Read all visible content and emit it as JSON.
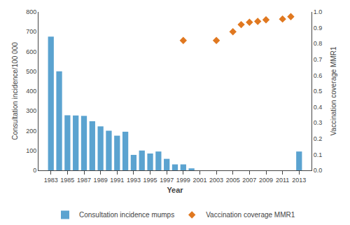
{
  "chart_data": {
    "type": "bar",
    "xlabel": "Year",
    "ylabel": "Consultation incidence/100 000",
    "y2label": "Vaccination coverage MMR1",
    "series": [
      {
        "name": "Consultation incidence mumps",
        "type": "bar",
        "color": "#5BA3D0",
        "x": [
          1983,
          1984,
          1985,
          1986,
          1987,
          1988,
          1989,
          1990,
          1991,
          1992,
          1993,
          1994,
          1995,
          1996,
          1997,
          1998,
          1999,
          2000,
          2013
        ],
        "values": [
          675,
          500,
          278,
          277,
          275,
          248,
          222,
          200,
          175,
          195,
          78,
          100,
          85,
          95,
          58,
          30,
          30,
          10,
          95
        ]
      },
      {
        "name": "Vaccination coverage MMR1",
        "type": "scatter",
        "axis": "y2",
        "marker": "diamond",
        "color": "#E07820",
        "x": [
          1999,
          2003,
          2005,
          2006,
          2007,
          2008,
          2009,
          2011,
          2012
        ],
        "values": [
          0.82,
          0.82,
          0.875,
          0.92,
          0.935,
          0.94,
          0.95,
          0.955,
          0.97
        ]
      }
    ],
    "xlim": [
      1981.5,
      2014.5
    ],
    "xticks": [
      1983,
      1985,
      1987,
      1989,
      1991,
      1993,
      1995,
      1997,
      1999,
      2001,
      2003,
      2005,
      2007,
      2009,
      2011,
      2013
    ],
    "ylim": [
      0,
      800
    ],
    "yticks": [
      0,
      100,
      200,
      300,
      400,
      500,
      600,
      700,
      800
    ],
    "y2lim": [
      0,
      1.0
    ],
    "y2ticks": [
      {
        "value": 0,
        "label": "0.0"
      },
      0.1,
      0.2,
      0.3,
      0.4,
      0.5,
      0.6,
      0.7,
      0.8,
      0.9,
      {
        "value": 1.0,
        "label": "1.0"
      }
    ],
    "grid": false,
    "legend": "bottom"
  }
}
